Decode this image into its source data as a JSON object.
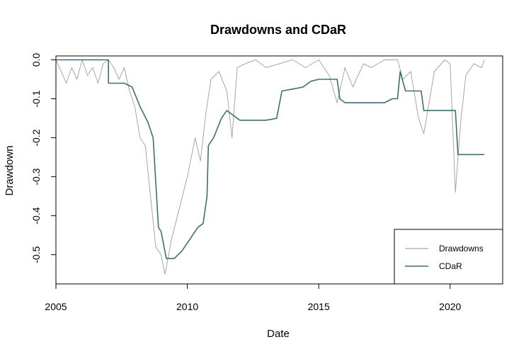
{
  "chart_data": {
    "type": "line",
    "title": "Drawdowns and CDaR",
    "xlabel": "Date",
    "ylabel": "Drawdown",
    "xlim": [
      2005,
      2022
    ],
    "ylim": [
      -0.575,
      0.01
    ],
    "x_ticks": [
      2005,
      2010,
      2015,
      2020
    ],
    "x_tick_labels": [
      "2005",
      "2010",
      "2015",
      "2020"
    ],
    "y_ticks": [
      0.0,
      -0.1,
      -0.2,
      -0.3,
      -0.4,
      -0.5
    ],
    "y_tick_labels": [
      "0.0",
      "-0.1",
      "-0.2",
      "-0.3",
      "-0.4",
      "-0.5"
    ],
    "legend_position": "bottom-right",
    "series": [
      {
        "name": "Drawdowns",
        "color": "#a6a6a6",
        "x": [
          2005.0,
          2005.2,
          2005.4,
          2005.6,
          2005.8,
          2006.0,
          2006.2,
          2006.4,
          2006.6,
          2006.8,
          2007.0,
          2007.2,
          2007.4,
          2007.6,
          2007.8,
          2008.0,
          2008.2,
          2008.4,
          2008.6,
          2008.8,
          2009.0,
          2009.15,
          2009.4,
          2009.7,
          2010.0,
          2010.3,
          2010.5,
          2010.7,
          2010.9,
          2011.2,
          2011.5,
          2011.7,
          2011.9,
          2012.2,
          2012.6,
          2013.0,
          2013.5,
          2014.0,
          2014.5,
          2015.0,
          2015.4,
          2015.7,
          2016.0,
          2016.3,
          2016.7,
          2017.0,
          2017.5,
          2018.0,
          2018.2,
          2018.5,
          2018.8,
          2019.0,
          2019.4,
          2019.8,
          2020.0,
          2020.2,
          2020.4,
          2020.6,
          2020.9,
          2021.2,
          2021.3
        ],
        "y": [
          0.0,
          -0.03,
          -0.06,
          -0.02,
          -0.05,
          0.0,
          -0.04,
          -0.02,
          -0.06,
          -0.01,
          0.0,
          -0.02,
          -0.05,
          -0.02,
          -0.08,
          -0.12,
          -0.2,
          -0.22,
          -0.35,
          -0.48,
          -0.5,
          -0.55,
          -0.46,
          -0.38,
          -0.3,
          -0.2,
          -0.26,
          -0.14,
          -0.05,
          -0.03,
          -0.08,
          -0.2,
          -0.02,
          -0.01,
          0.0,
          -0.02,
          -0.01,
          0.0,
          -0.02,
          0.0,
          -0.04,
          -0.11,
          -0.02,
          -0.07,
          -0.01,
          -0.02,
          0.0,
          0.0,
          -0.05,
          -0.03,
          -0.15,
          -0.19,
          -0.03,
          0.0,
          -0.01,
          -0.34,
          -0.16,
          -0.04,
          -0.01,
          -0.02,
          0.0
        ]
      },
      {
        "name": "CDaR",
        "color": "#3f6f74",
        "x": [
          2005.0,
          2007.0,
          2007.0,
          2007.6,
          2007.9,
          2008.2,
          2008.5,
          2008.7,
          2008.9,
          2009.0,
          2009.2,
          2009.5,
          2009.8,
          2010.0,
          2010.4,
          2010.6,
          2010.75,
          2010.8,
          2011.0,
          2011.3,
          2011.5,
          2012.0,
          2012.5,
          2013.0,
          2013.4,
          2013.6,
          2014.0,
          2014.4,
          2014.7,
          2015.0,
          2015.7,
          2015.8,
          2016.0,
          2016.5,
          2017.0,
          2017.5,
          2017.8,
          2018.0,
          2018.1,
          2018.3,
          2018.6,
          2018.9,
          2019.0,
          2019.5,
          2020.0,
          2020.2,
          2020.3,
          2021.3
        ],
        "y": [
          0.0,
          0.0,
          -0.06,
          -0.06,
          -0.07,
          -0.12,
          -0.16,
          -0.2,
          -0.43,
          -0.44,
          -0.51,
          -0.51,
          -0.49,
          -0.47,
          -0.43,
          -0.42,
          -0.35,
          -0.22,
          -0.2,
          -0.15,
          -0.13,
          -0.155,
          -0.155,
          -0.155,
          -0.15,
          -0.08,
          -0.075,
          -0.07,
          -0.055,
          -0.05,
          -0.05,
          -0.1,
          -0.11,
          -0.11,
          -0.11,
          -0.11,
          -0.1,
          -0.1,
          -0.03,
          -0.08,
          -0.08,
          -0.08,
          -0.13,
          -0.13,
          -0.13,
          -0.13,
          -0.243,
          -0.243
        ]
      }
    ]
  }
}
